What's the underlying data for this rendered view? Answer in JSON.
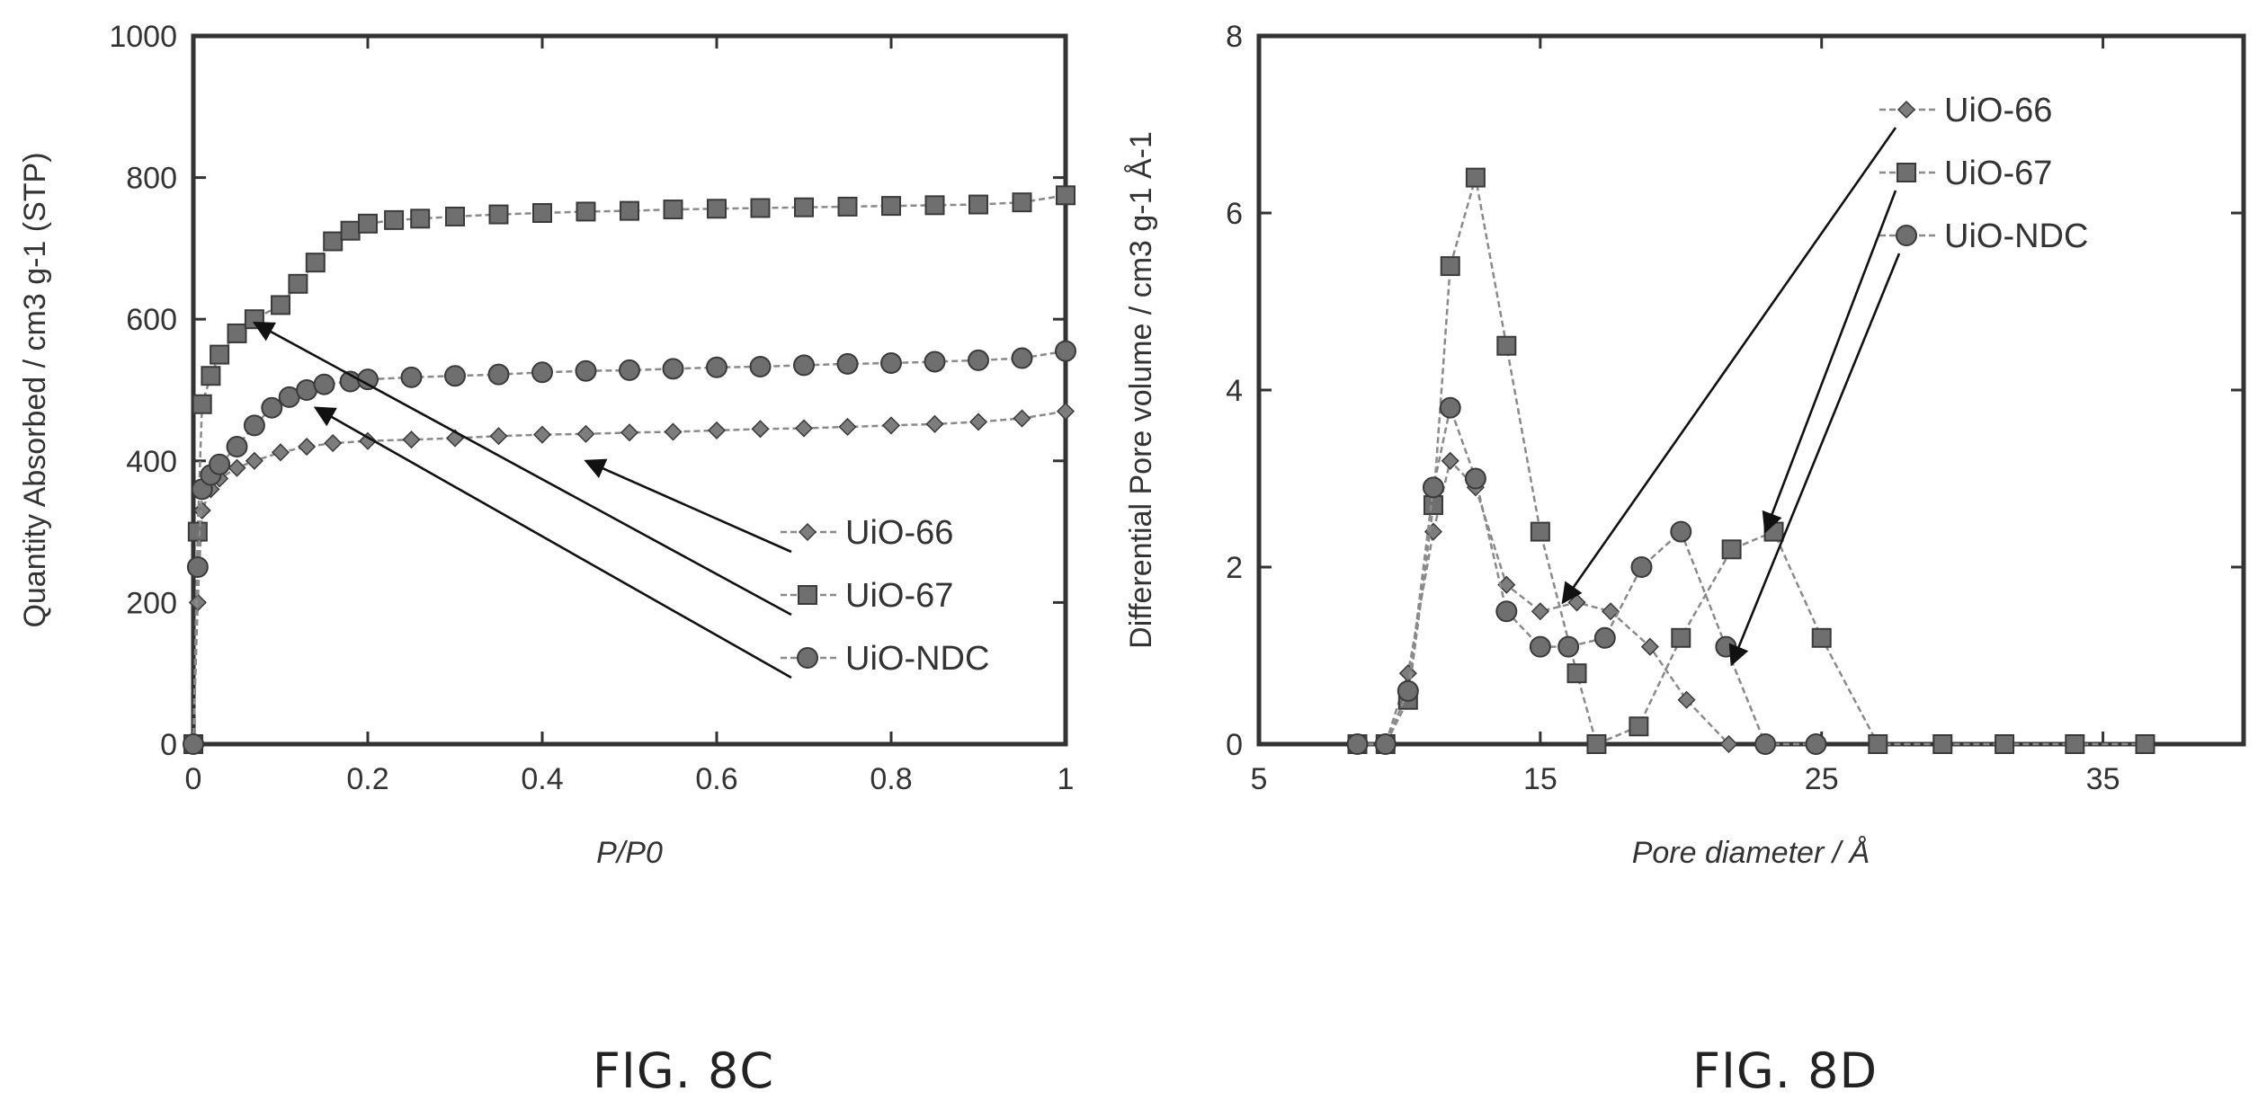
{
  "chart_data": [
    {
      "type": "scatter",
      "title": "",
      "xlabel": "P/P0",
      "ylabel": "Quantity Absorbed / cm3 g-1 (STP)",
      "xlim": [
        0,
        1
      ],
      "ylim": [
        0,
        1000
      ],
      "xticks": [
        0,
        0.2,
        0.4,
        0.6,
        0.8,
        1
      ],
      "xtick_labels": [
        "0",
        "0.2",
        "0.4",
        "0.6",
        "0.8",
        "1"
      ],
      "yticks": [
        0,
        200,
        400,
        600,
        800,
        1000
      ],
      "ytick_labels": [
        "0",
        "200",
        "400",
        "600",
        "800",
        "1000"
      ],
      "grid": false,
      "legend_position": "bottom-right",
      "caption": "FIG. 8C",
      "series": [
        {
          "name": "UiO-66",
          "marker": "diamond",
          "x": [
            0.0,
            0.005,
            0.01,
            0.02,
            0.03,
            0.05,
            0.07,
            0.1,
            0.13,
            0.16,
            0.2,
            0.25,
            0.3,
            0.35,
            0.4,
            0.45,
            0.5,
            0.55,
            0.6,
            0.65,
            0.7,
            0.75,
            0.8,
            0.85,
            0.9,
            0.95,
            1.0
          ],
          "y": [
            0,
            200,
            330,
            360,
            375,
            390,
            400,
            412,
            420,
            425,
            428,
            430,
            432,
            435,
            437,
            438,
            440,
            441,
            443,
            445,
            446,
            448,
            450,
            452,
            455,
            460,
            470
          ]
        },
        {
          "name": "UiO-67",
          "marker": "square",
          "x": [
            0.0,
            0.005,
            0.01,
            0.02,
            0.03,
            0.05,
            0.07,
            0.1,
            0.12,
            0.14,
            0.16,
            0.18,
            0.2,
            0.23,
            0.26,
            0.3,
            0.35,
            0.4,
            0.45,
            0.5,
            0.55,
            0.6,
            0.65,
            0.7,
            0.75,
            0.8,
            0.85,
            0.9,
            0.95,
            1.0
          ],
          "y": [
            0,
            300,
            480,
            520,
            550,
            580,
            600,
            620,
            650,
            680,
            710,
            725,
            735,
            740,
            742,
            745,
            748,
            750,
            752,
            753,
            755,
            756,
            757,
            758,
            759,
            760,
            761,
            762,
            765,
            775
          ]
        },
        {
          "name": "UiO-NDC",
          "marker": "circle",
          "x": [
            0.0,
            0.005,
            0.01,
            0.02,
            0.03,
            0.05,
            0.07,
            0.09,
            0.11,
            0.13,
            0.15,
            0.18,
            0.2,
            0.25,
            0.3,
            0.35,
            0.4,
            0.45,
            0.5,
            0.55,
            0.6,
            0.65,
            0.7,
            0.75,
            0.8,
            0.85,
            0.9,
            0.95,
            1.0
          ],
          "y": [
            0,
            250,
            360,
            380,
            395,
            420,
            450,
            475,
            490,
            500,
            508,
            512,
            515,
            518,
            520,
            522,
            525,
            527,
            528,
            530,
            532,
            533,
            535,
            537,
            538,
            540,
            542,
            545,
            555
          ]
        }
      ],
      "legend_entries": [
        "UiO-66",
        "UiO-67",
        "UiO-NDC"
      ]
    },
    {
      "type": "line",
      "title": "",
      "xlabel": "Pore diameter / Å",
      "ylabel": "Differential Pore volume / cm3 g-1 Å-1",
      "xlim": [
        5,
        40
      ],
      "ylim": [
        0,
        8
      ],
      "xticks": [
        5,
        15,
        25,
        35
      ],
      "xtick_labels": [
        "5",
        "15",
        "25",
        "35"
      ],
      "yticks": [
        0,
        2,
        4,
        6,
        8
      ],
      "ytick_labels": [
        "0",
        "2",
        "4",
        "6",
        "8"
      ],
      "grid": false,
      "legend_position": "top-right",
      "caption": "FIG. 8D",
      "series": [
        {
          "name": "UiO-66",
          "marker": "diamond",
          "x": [
            8.5,
            9.5,
            10.3,
            11.2,
            11.8,
            12.7,
            13.8,
            15.0,
            16.3,
            17.5,
            18.9,
            20.2,
            21.7
          ],
          "y": [
            0,
            0,
            0.8,
            2.4,
            3.2,
            2.9,
            1.8,
            1.5,
            1.6,
            1.5,
            1.1,
            0.5,
            0
          ]
        },
        {
          "name": "UiO-67",
          "marker": "square",
          "x": [
            8.5,
            9.5,
            10.3,
            11.2,
            11.8,
            12.7,
            13.8,
            15.0,
            16.3,
            17.0,
            18.5,
            20.0,
            21.8,
            23.3,
            25.0,
            27.0,
            29.3,
            31.5,
            34.0,
            36.5
          ],
          "y": [
            0,
            0,
            0.5,
            2.7,
            5.4,
            6.4,
            4.5,
            2.4,
            0.8,
            0,
            0.2,
            1.2,
            2.2,
            2.4,
            1.2,
            0,
            0,
            0,
            0,
            0
          ]
        },
        {
          "name": "UiO-NDC",
          "marker": "circle",
          "x": [
            8.5,
            9.5,
            10.3,
            11.2,
            11.8,
            12.7,
            13.8,
            15.0,
            16.0,
            17.3,
            18.6,
            20.0,
            21.6,
            23.0,
            24.8
          ],
          "y": [
            0,
            0,
            0.6,
            2.9,
            3.8,
            3.0,
            1.5,
            1.1,
            1.1,
            1.2,
            2.0,
            2.4,
            1.1,
            0,
            0
          ]
        }
      ],
      "legend_entries": [
        "UiO-66",
        "UiO-67",
        "UiO-NDC"
      ]
    }
  ]
}
